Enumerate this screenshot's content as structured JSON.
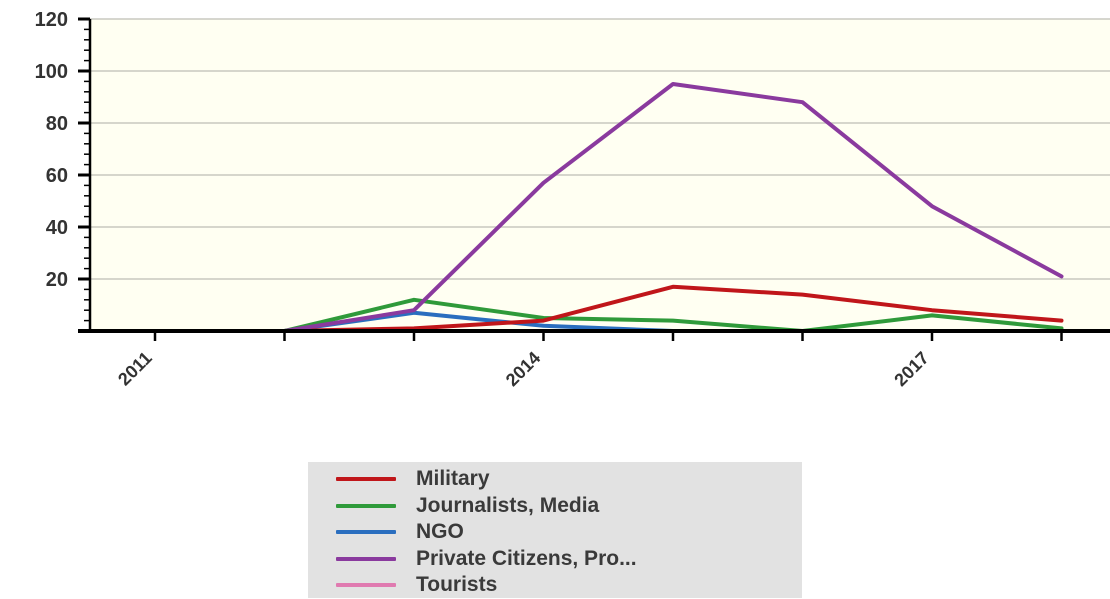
{
  "chart_data": {
    "type": "line",
    "x": [
      "2011",
      "2012",
      "2013",
      "2014",
      "2015",
      "2016",
      "2017",
      "2018"
    ],
    "x_tick_labels": [
      "2011",
      "2014",
      "2017"
    ],
    "y_tick_labels": [
      "20",
      "40",
      "60",
      "80",
      "100",
      "120"
    ],
    "ylim": [
      0,
      120
    ],
    "grid": true,
    "legend_position": "bottom",
    "series": [
      {
        "name": "Military",
        "color": "#c0161a",
        "values": [
          0,
          0,
          1,
          4,
          17,
          14,
          8,
          4
        ]
      },
      {
        "name": "Journalists, Media",
        "color": "#2f9a3a",
        "values": [
          0,
          0,
          12,
          5,
          4,
          0,
          6,
          1
        ]
      },
      {
        "name": "NGO",
        "color": "#2a6ebf",
        "values": [
          0,
          0,
          7,
          2,
          0,
          0,
          0,
          0
        ]
      },
      {
        "name": "Private Citizens, Pro...",
        "color": "#8a3a9e",
        "values": [
          0,
          0,
          8,
          57,
          95,
          88,
          48,
          21
        ]
      },
      {
        "name": "Tourists",
        "color": "#e07ab0",
        "values": [
          0,
          0,
          0,
          0,
          0,
          0,
          0,
          0
        ]
      }
    ],
    "plot_background": "#fffff2"
  }
}
